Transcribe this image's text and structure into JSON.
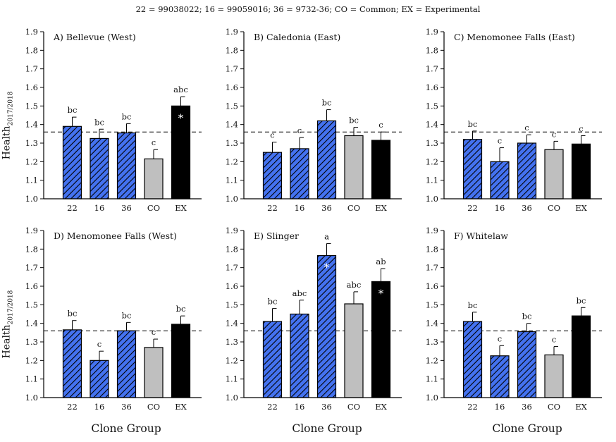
{
  "caption": "22 = 99038022; 16 = 99059016; 36 = 9732-36; CO = Common; EX = Experimental",
  "y_label_main": "Health",
  "y_label_sub": "2017/2018",
  "x_label": "Clone Group",
  "colors": {
    "hatch_fill": "#4472f0",
    "common": "#bfbfbf",
    "experimental": "#000000",
    "axis": "#000000"
  },
  "chart_data": [
    {
      "type": "bar",
      "title": "A) Bellevue (West)",
      "categories": [
        "22",
        "16",
        "36",
        "CO",
        "EX"
      ],
      "values": [
        1.39,
        1.325,
        1.355,
        1.215,
        1.5
      ],
      "errors": [
        0.05,
        0.05,
        0.05,
        0.05,
        0.05
      ],
      "letters": [
        "bc",
        "bc",
        "bc",
        "c",
        "abc"
      ],
      "significant": [
        false,
        false,
        false,
        false,
        true
      ],
      "reference_line": 1.36,
      "ylim": [
        1.0,
        1.9
      ],
      "yticks": [
        "1.0",
        "1.1",
        "1.2",
        "1.3",
        "1.4",
        "1.5",
        "1.6",
        "1.7",
        "1.8",
        "1.9"
      ],
      "xlabel": "Clone Group",
      "ylabel": "Health2017/2018"
    },
    {
      "type": "bar",
      "title": "B) Caledonia (East)",
      "categories": [
        "22",
        "16",
        "36",
        "CO",
        "EX"
      ],
      "values": [
        1.25,
        1.27,
        1.42,
        1.34,
        1.315
      ],
      "errors": [
        0.055,
        0.06,
        0.06,
        0.045,
        0.045
      ],
      "letters": [
        "c",
        "c",
        "bc",
        "bc",
        "c"
      ],
      "significant": [
        false,
        false,
        false,
        false,
        false
      ],
      "reference_line": 1.36,
      "ylim": [
        1.0,
        1.9
      ],
      "yticks": [
        "1.0",
        "1.1",
        "1.2",
        "1.3",
        "1.4",
        "1.5",
        "1.6",
        "1.7",
        "1.8",
        "1.9"
      ],
      "xlabel": "Clone Group",
      "ylabel": ""
    },
    {
      "type": "bar",
      "title": "C) Menomonee Falls (East)",
      "categories": [
        "22",
        "16",
        "36",
        "CO",
        "EX"
      ],
      "values": [
        1.32,
        1.2,
        1.3,
        1.265,
        1.295
      ],
      "errors": [
        0.045,
        0.075,
        0.045,
        0.045,
        0.045
      ],
      "letters": [
        "bc",
        "c",
        "c",
        "c",
        "c"
      ],
      "significant": [
        false,
        false,
        false,
        false,
        false
      ],
      "reference_line": 1.36,
      "ylim": [
        1.0,
        1.9
      ],
      "yticks": [
        "1.0",
        "1.1",
        "1.2",
        "1.3",
        "1.4",
        "1.5",
        "1.6",
        "1.7",
        "1.8",
        "1.9"
      ],
      "xlabel": "Clone Group",
      "ylabel": ""
    },
    {
      "type": "bar",
      "title": "D) Menomonee Falls (West)",
      "categories": [
        "22",
        "16",
        "36",
        "CO",
        "EX"
      ],
      "values": [
        1.365,
        1.2,
        1.36,
        1.27,
        1.395
      ],
      "errors": [
        0.05,
        0.05,
        0.045,
        0.045,
        0.045
      ],
      "letters": [
        "bc",
        "c",
        "bc",
        "c",
        "bc"
      ],
      "significant": [
        false,
        false,
        false,
        false,
        false
      ],
      "reference_line": 1.36,
      "ylim": [
        1.0,
        1.9
      ],
      "yticks": [
        "1.0",
        "1.1",
        "1.2",
        "1.3",
        "1.4",
        "1.5",
        "1.6",
        "1.7",
        "1.8",
        "1.9"
      ],
      "xlabel": "Clone Group",
      "ylabel": "Health2017/2018"
    },
    {
      "type": "bar",
      "title": "E) Slinger",
      "categories": [
        "22",
        "16",
        "36",
        "CO",
        "EX"
      ],
      "values": [
        1.41,
        1.45,
        1.765,
        1.505,
        1.625
      ],
      "errors": [
        0.07,
        0.075,
        0.065,
        0.065,
        0.07
      ],
      "letters": [
        "bc",
        "abc",
        "a",
        "abc",
        "ab"
      ],
      "significant": [
        false,
        false,
        true,
        false,
        true
      ],
      "reference_line": 1.36,
      "ylim": [
        1.0,
        1.9
      ],
      "yticks": [
        "1.0",
        "1.1",
        "1.2",
        "1.3",
        "1.4",
        "1.5",
        "1.6",
        "1.7",
        "1.8",
        "1.9"
      ],
      "xlabel": "Clone Group",
      "ylabel": ""
    },
    {
      "type": "bar",
      "title": "F) Whitelaw",
      "categories": [
        "22",
        "16",
        "36",
        "CO",
        "EX"
      ],
      "values": [
        1.41,
        1.225,
        1.355,
        1.23,
        1.44
      ],
      "errors": [
        0.05,
        0.055,
        0.045,
        0.045,
        0.045
      ],
      "letters": [
        "bc",
        "c",
        "bc",
        "c",
        "bc"
      ],
      "significant": [
        false,
        false,
        false,
        false,
        false
      ],
      "reference_line": 1.36,
      "ylim": [
        1.0,
        1.9
      ],
      "yticks": [
        "1.0",
        "1.1",
        "1.2",
        "1.3",
        "1.4",
        "1.5",
        "1.6",
        "1.7",
        "1.8",
        "1.9"
      ],
      "xlabel": "Clone Group",
      "ylabel": ""
    }
  ]
}
